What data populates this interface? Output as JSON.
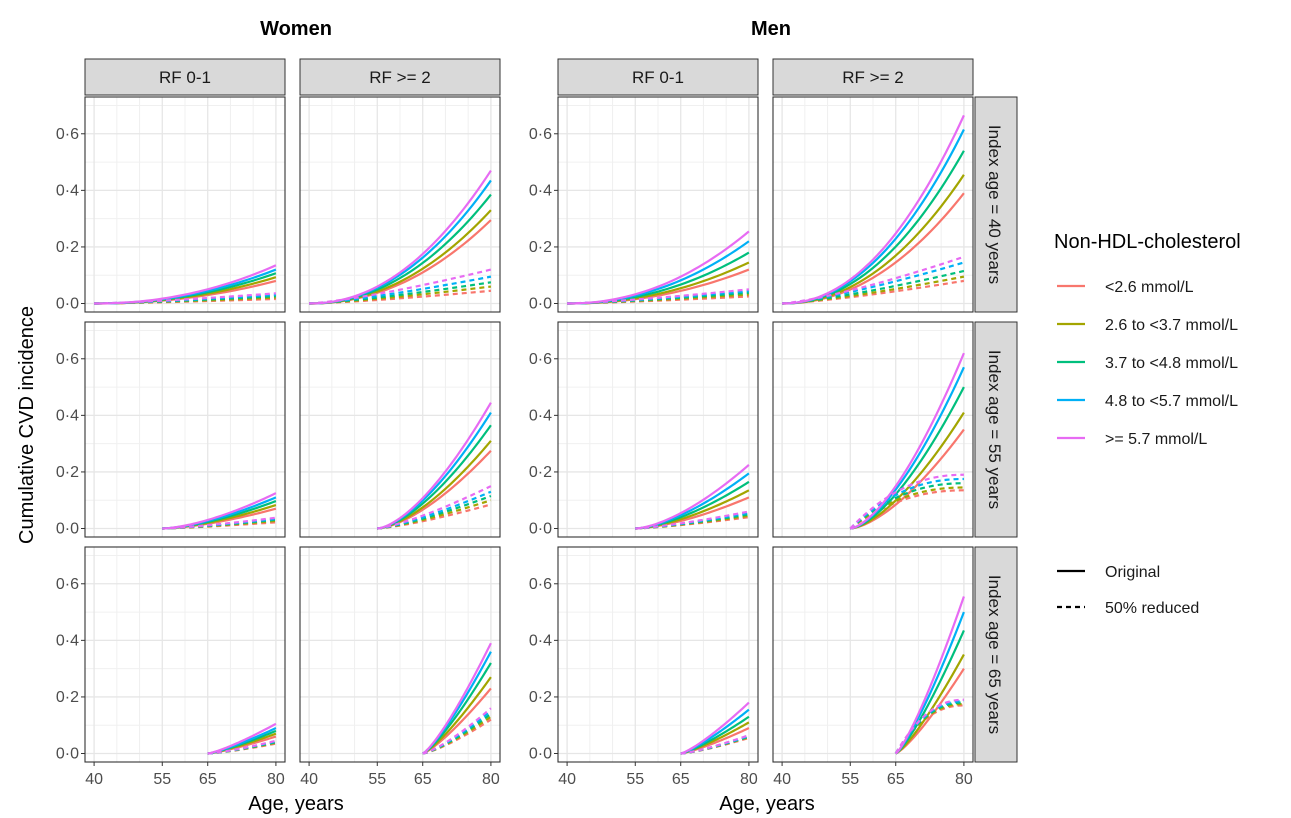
{
  "chart_data": {
    "type": "line",
    "groups": [
      "Women",
      "Men"
    ],
    "column_strips": [
      "RF 0-1",
      "RF >= 2"
    ],
    "row_strips": [
      "Index age = 40 years",
      "Index age = 55 years",
      "Index age = 65 years"
    ],
    "xlabel": "Age, years",
    "ylabel": "Cumulative CVD incidence",
    "xlim": [
      38,
      82
    ],
    "ylim": [
      -0.03,
      0.73
    ],
    "x_ticks": [
      40,
      55,
      65,
      80
    ],
    "y_ticks": [
      0,
      0.2,
      0.4,
      0.6
    ],
    "y_tick_labels": [
      "0·0",
      "0·2",
      "0·4",
      "0·6"
    ],
    "grid": true,
    "legend_position": "right",
    "color_legend": {
      "title": "Non-HDL-cholesterol",
      "entries": [
        {
          "label": "<2.6 mmol/L",
          "color": "#F8766D"
        },
        {
          "label": "2.6 to <3.7 mmol/L",
          "color": "#A3A500"
        },
        {
          "label": "3.7 to <4.8 mmol/L",
          "color": "#00BF7D"
        },
        {
          "label": "4.8 to <5.7 mmol/L",
          "color": "#00B0F6"
        },
        {
          "label": ">= 5.7 mmol/L",
          "color": "#E76BF3"
        }
      ]
    },
    "linetype_legend": {
      "entries": [
        {
          "label": "Original",
          "dash": "solid"
        },
        {
          "label": "50% reduced",
          "dash": "dashed"
        }
      ]
    },
    "panels": [
      {
        "group": "Women",
        "rf": "RF 0-1",
        "index_age": 40,
        "orig_end": [
          0.08,
          0.093,
          0.107,
          0.12,
          0.135
        ],
        "red_end": [
          0.016,
          0.021,
          0.026,
          0.031,
          0.036
        ],
        "red_shape": "rise"
      },
      {
        "group": "Women",
        "rf": "RF >= 2",
        "index_age": 40,
        "orig_end": [
          0.295,
          0.33,
          0.385,
          0.435,
          0.47
        ],
        "red_end": [
          0.045,
          0.06,
          0.075,
          0.095,
          0.12
        ],
        "red_shape": "rise"
      },
      {
        "group": "Men",
        "rf": "RF 0-1",
        "index_age": 40,
        "orig_end": [
          0.12,
          0.145,
          0.18,
          0.22,
          0.255
        ],
        "red_end": [
          0.025,
          0.032,
          0.038,
          0.044,
          0.05
        ],
        "red_shape": "rise"
      },
      {
        "group": "Men",
        "rf": "RF >= 2",
        "index_age": 40,
        "orig_end": [
          0.39,
          0.455,
          0.54,
          0.615,
          0.665
        ],
        "red_end": [
          0.08,
          0.095,
          0.115,
          0.145,
          0.165
        ],
        "red_shape": "rise"
      },
      {
        "group": "Women",
        "rf": "RF 0-1",
        "index_age": 55,
        "orig_end": [
          0.07,
          0.083,
          0.097,
          0.11,
          0.125
        ],
        "red_end": [
          0.022,
          0.027,
          0.031,
          0.034,
          0.038
        ],
        "red_shape": "rise"
      },
      {
        "group": "Women",
        "rf": "RF >= 2",
        "index_age": 55,
        "orig_end": [
          0.275,
          0.31,
          0.365,
          0.41,
          0.445
        ],
        "red_end": [
          0.085,
          0.1,
          0.115,
          0.13,
          0.15
        ],
        "red_shape": "rise"
      },
      {
        "group": "Men",
        "rf": "RF 0-1",
        "index_age": 55,
        "orig_end": [
          0.11,
          0.135,
          0.165,
          0.195,
          0.225
        ],
        "red_end": [
          0.04,
          0.045,
          0.05,
          0.055,
          0.06
        ],
        "red_shape": "rise"
      },
      {
        "group": "Men",
        "rf": "RF >= 2",
        "index_age": 55,
        "orig_end": [
          0.35,
          0.41,
          0.5,
          0.57,
          0.62
        ],
        "red_end": [
          0.135,
          0.145,
          0.16,
          0.175,
          0.19
        ],
        "red_shape": "plateau"
      },
      {
        "group": "Women",
        "rf": "RF 0-1",
        "index_age": 65,
        "orig_end": [
          0.06,
          0.07,
          0.08,
          0.09,
          0.105
        ],
        "red_end": [
          0.035,
          0.038,
          0.04,
          0.043,
          0.045
        ],
        "red_shape": "rise"
      },
      {
        "group": "Women",
        "rf": "RF >= 2",
        "index_age": 65,
        "orig_end": [
          0.23,
          0.27,
          0.32,
          0.36,
          0.39
        ],
        "red_end": [
          0.12,
          0.13,
          0.14,
          0.15,
          0.16
        ],
        "red_shape": "rise"
      },
      {
        "group": "Men",
        "rf": "RF 0-1",
        "index_age": 65,
        "orig_end": [
          0.09,
          0.11,
          0.13,
          0.155,
          0.18
        ],
        "red_end": [
          0.055,
          0.058,
          0.06,
          0.062,
          0.065
        ],
        "red_shape": "rise"
      },
      {
        "group": "Men",
        "rf": "RF >= 2",
        "index_age": 65,
        "orig_end": [
          0.3,
          0.35,
          0.435,
          0.5,
          0.555
        ],
        "red_end": [
          0.17,
          0.175,
          0.18,
          0.185,
          0.19
        ],
        "red_shape": "plateau"
      }
    ]
  }
}
